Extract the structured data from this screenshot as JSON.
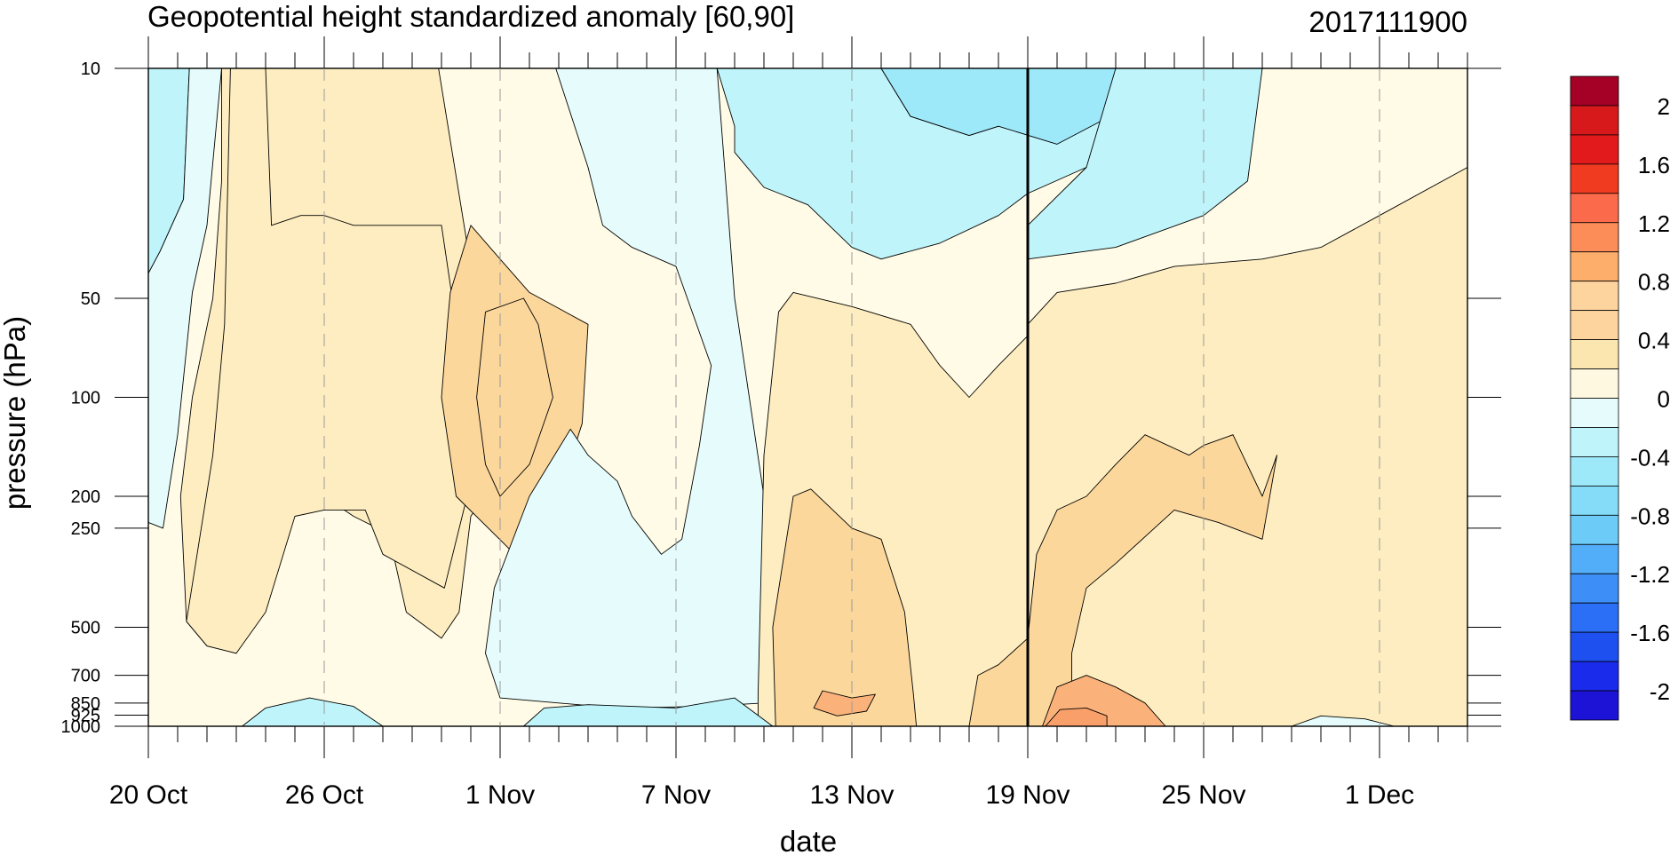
{
  "chart_data": {
    "type": "heatmap",
    "title": "Geopotential height standardized anomaly [60,90]",
    "date_label": "2017111900",
    "xlabel": "date",
    "ylabel": "pressure (hPa)",
    "x_ticks": [
      "20 Oct",
      "26 Oct",
      "1 Nov",
      "7 Nov",
      "13 Nov",
      "19 Nov",
      "25 Nov",
      "1 Dec"
    ],
    "x_range_days": [
      0,
      45
    ],
    "y_ticks": [
      10,
      50,
      100,
      200,
      250,
      500,
      700,
      850,
      925,
      1000
    ],
    "y_range": [
      10,
      1000
    ],
    "y_scale": "log",
    "y_inverted": true,
    "current_date_line": "19 Nov",
    "colorbar": {
      "labels": [
        "2",
        "1.6",
        "1.2",
        "0.8",
        "0.4",
        "0",
        "-0.4",
        "-0.8",
        "-1.2",
        "-1.6",
        "-2"
      ],
      "colors": [
        "#a50026",
        "#d7191c",
        "#e31a1c",
        "#f03b20",
        "#fb6a4a",
        "#fc8d59",
        "#fdae6b",
        "#fdd49e",
        "#fdd49e",
        "#fbe6b0",
        "#fff8e1",
        "#e6fcfc",
        "#bff4fa",
        "#9ee9f9",
        "#85dcf8",
        "#6ccbf7",
        "#53aef9",
        "#3d8ff7",
        "#2a6ff5",
        "#1e50f0",
        "#1a2bec",
        "#1d13d6"
      ]
    },
    "contour_levels": [
      -0.4,
      -0.2,
      0,
      0.2,
      0.4,
      0.6,
      0.8
    ],
    "anomaly_grid_note": "days since 20 Oct vs pressure",
    "fills": {
      "neg2": "#bff4fa",
      "neg3": "#9ee9f9",
      "neg1": "#e6fcfc",
      "zero": "#fffbe6",
      "pos1": "#fdedc0",
      "pos2": "#fcd79c",
      "pos3": "#fbb27a",
      "pos4": "#f9a06a"
    }
  }
}
